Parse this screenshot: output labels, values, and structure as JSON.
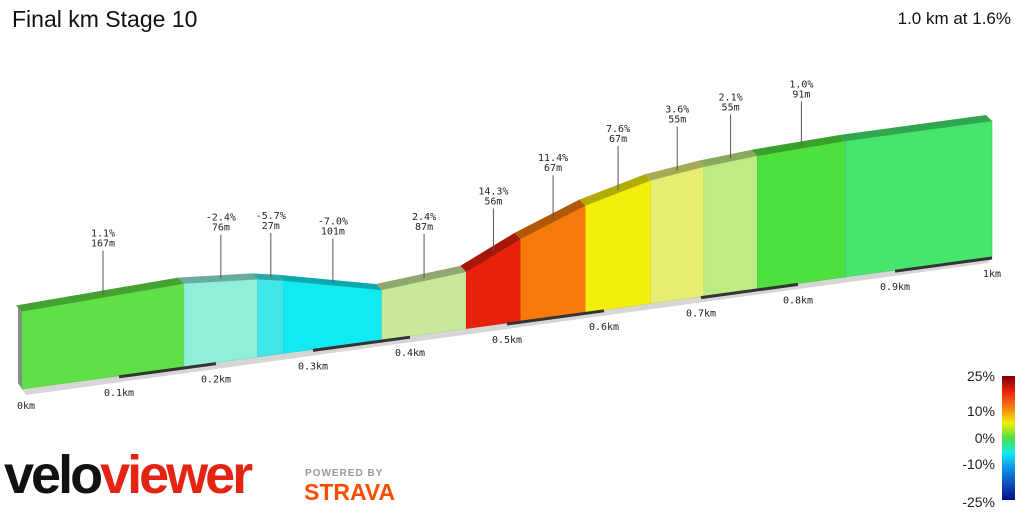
{
  "header": {
    "title": "Final km Stage 10",
    "summary": "1.0 km at 1.6%"
  },
  "branding": {
    "logo_part1": "velo",
    "logo_part2": "viewer",
    "powered_by": "POWERED BY",
    "strava": "STRAVA"
  },
  "legend": {
    "labels": [
      "25%",
      "10%",
      "0%",
      "-10%",
      "-25%"
    ]
  },
  "chart_data": {
    "type": "area",
    "title": "Final km Stage 10",
    "xlabel": "",
    "ylabel": "",
    "x_unit": "km",
    "x_ticks": [
      "0km",
      "0.1km",
      "0.2km",
      "0.3km",
      "0.4km",
      "0.5km",
      "0.6km",
      "0.7km",
      "0.8km",
      "0.9km",
      "1km"
    ],
    "segments": [
      {
        "start_km": 0.0,
        "end_km": 0.167,
        "gradient": 1.1,
        "length_m": 167,
        "label": "1.1%\n167m",
        "color": "#5ee046"
      },
      {
        "start_km": 0.167,
        "end_km": 0.243,
        "gradient": -2.4,
        "length_m": 76,
        "label": "-2.4%\n76m",
        "color": "#8fefd8"
      },
      {
        "start_km": 0.243,
        "end_km": 0.27,
        "gradient": -5.7,
        "length_m": 27,
        "label": "-5.7%\n27m",
        "color": "#40e6ea"
      },
      {
        "start_km": 0.27,
        "end_km": 0.371,
        "gradient": -7.0,
        "length_m": 101,
        "label": "-7.0%\n101m",
        "color": "#12eaf2"
      },
      {
        "start_km": 0.371,
        "end_km": 0.458,
        "gradient": 2.4,
        "length_m": 87,
        "label": "2.4%\n87m",
        "color": "#c8e89a"
      },
      {
        "start_km": 0.458,
        "end_km": 0.514,
        "gradient": 14.3,
        "length_m": 56,
        "label": "14.3%\n56m",
        "color": "#e8200c"
      },
      {
        "start_km": 0.514,
        "end_km": 0.581,
        "gradient": 11.4,
        "length_m": 67,
        "label": "11.4%\n67m",
        "color": "#f77a0c"
      },
      {
        "start_km": 0.581,
        "end_km": 0.648,
        "gradient": 7.6,
        "length_m": 67,
        "label": "7.6%\n67m",
        "color": "#f4ef0a"
      },
      {
        "start_km": 0.648,
        "end_km": 0.703,
        "gradient": 3.6,
        "length_m": 55,
        "label": "3.6%\n55m",
        "color": "#e6ee72"
      },
      {
        "start_km": 0.703,
        "end_km": 0.758,
        "gradient": 2.1,
        "length_m": 55,
        "label": "2.1%\n55m",
        "color": "#bfeb84"
      },
      {
        "start_km": 0.758,
        "end_km": 0.849,
        "gradient": 1.0,
        "length_m": 91,
        "label": "1.0%\n91m",
        "color": "#4ee03e"
      },
      {
        "start_km": 0.849,
        "end_km": 1.0,
        "gradient": null,
        "length_m": null,
        "label": "",
        "color": "#46e56e"
      }
    ],
    "colorscale": [
      {
        "value": 25,
        "color": "#7a0000"
      },
      {
        "value": 15,
        "color": "#e8200c"
      },
      {
        "value": 10,
        "color": "#f77a0c"
      },
      {
        "value": 5,
        "color": "#f4ef0a"
      },
      {
        "value": 0,
        "color": "#4ee03e"
      },
      {
        "value": -5,
        "color": "#12eaf2"
      },
      {
        "value": -10,
        "color": "#0a8fe8"
      },
      {
        "value": -25,
        "color": "#0a0a8a"
      }
    ]
  }
}
